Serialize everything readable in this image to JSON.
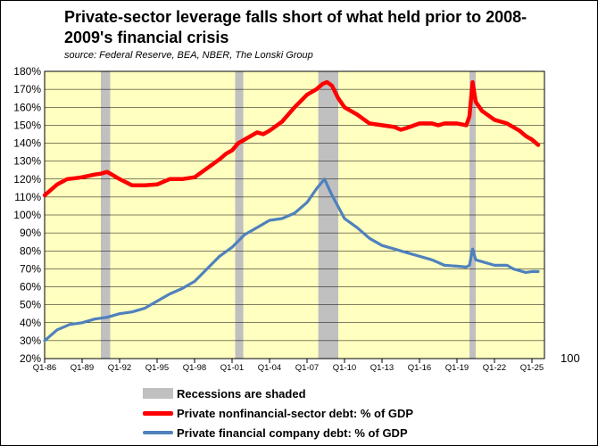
{
  "chart_data": {
    "type": "line",
    "title": "Private-sector leverage falls short of what held prior to 2008-2009's financial crisis",
    "subtitle": "source: Federal Reserve, BEA, NBER, The Lonski Group",
    "x_tick_labels": [
      "Q1-86",
      "Q1-89",
      "Q1-92",
      "Q1-95",
      "Q1-98",
      "Q1-01",
      "Q1-04",
      "Q1-07",
      "Q1-10",
      "Q1-13",
      "Q1-16",
      "Q1-19",
      "Q1-22",
      "Q1-25"
    ],
    "x_range": [
      1986.0,
      2026.0
    ],
    "y_tick_labels": [
      "20%",
      "30%",
      "40%",
      "50%",
      "60%",
      "70%",
      "80%",
      "90%",
      "100%",
      "110%",
      "120%",
      "130%",
      "140%",
      "150%",
      "160%",
      "170%",
      "180%"
    ],
    "ylim": [
      20,
      180
    ],
    "right_axis_label": "100",
    "grid": "horizontal",
    "plot_background": "#FFFFC0",
    "recessions": [
      {
        "start": 1990.5,
        "end": 1991.25
      },
      {
        "start": 2001.25,
        "end": 2001.9
      },
      {
        "start": 2007.9,
        "end": 2009.5
      },
      {
        "start": 2020.0,
        "end": 2020.5
      }
    ],
    "recession_color": "#C0C0C0",
    "series": [
      {
        "name": "Private nonfinancial-sector debt: % of GDP",
        "color": "#FF0000",
        "x": [
          1986.0,
          1987.0,
          1987.8,
          1988.5,
          1989.0,
          1990.0,
          1990.5,
          1991.0,
          1991.5,
          1992.0,
          1993.0,
          1994.0,
          1995.0,
          1996.0,
          1997.0,
          1998.0,
          1999.0,
          2000.0,
          2000.5,
          2001.0,
          2001.5,
          2002.0,
          2003.0,
          2003.5,
          2004.0,
          2005.0,
          2006.0,
          2007.0,
          2007.75,
          2008.25,
          2008.6,
          2009.0,
          2009.5,
          2010.0,
          2010.5,
          2011.0,
          2012.0,
          2013.0,
          2014.0,
          2014.5,
          2015.0,
          2016.0,
          2017.0,
          2017.5,
          2018.0,
          2019.0,
          2019.75,
          2020.0,
          2020.25,
          2020.5,
          2021.0,
          2022.0,
          2023.0,
          2024.0,
          2024.5,
          2025.0,
          2025.5
        ],
        "values": [
          111,
          117,
          120,
          120.5,
          121,
          122.5,
          123,
          124,
          122,
          120,
          116.5,
          116.5,
          117,
          120,
          120,
          121,
          126,
          131,
          134,
          136,
          140,
          142,
          146,
          145,
          147,
          152,
          160,
          167,
          170,
          173,
          174,
          172,
          165,
          160,
          158,
          156,
          151,
          150,
          149,
          147.5,
          148.5,
          151,
          151,
          150,
          151,
          151,
          150,
          155,
          174,
          163,
          158,
          153,
          151,
          147,
          144,
          142,
          139
        ]
      },
      {
        "name": "Private financial company debt: % of GDP",
        "color": "#4F81BD",
        "x": [
          1986.0,
          1987.0,
          1988.0,
          1989.0,
          1990.0,
          1991.0,
          1992.0,
          1993.0,
          1994.0,
          1995.0,
          1996.0,
          1997.0,
          1998.0,
          1999.0,
          2000.0,
          2001.0,
          2002.0,
          2003.0,
          2004.0,
          2005.0,
          2006.0,
          2007.0,
          2007.8,
          2008.4,
          2009.0,
          2010.0,
          2011.0,
          2012.0,
          2013.0,
          2014.0,
          2015.0,
          2016.0,
          2017.0,
          2018.0,
          2019.0,
          2019.75,
          2020.0,
          2020.25,
          2020.5,
          2021.0,
          2022.0,
          2023.0,
          2023.5,
          2024.0,
          2024.5,
          2025.0,
          2025.5
        ],
        "values": [
          30,
          36,
          39,
          40,
          42,
          43,
          45,
          46,
          48,
          52,
          56,
          59,
          63,
          70,
          77,
          82,
          89,
          93,
          97,
          98,
          101,
          107,
          115,
          120,
          111,
          98,
          93,
          87,
          83,
          81,
          79,
          77,
          75,
          72,
          71.5,
          71,
          72,
          81,
          75,
          74,
          72,
          72,
          70,
          69,
          68,
          68.5,
          68.5
        ]
      }
    ],
    "legend": [
      {
        "label": "Recessions are shaded",
        "color": "#C0C0C0",
        "kind": "box"
      },
      {
        "label": "Private nonfinancial-sector debt: % of GDP",
        "color": "#FF0000",
        "kind": "line"
      },
      {
        "label": "Private financial company debt: % of GDP",
        "color": "#4F81BD",
        "kind": "line"
      }
    ]
  }
}
